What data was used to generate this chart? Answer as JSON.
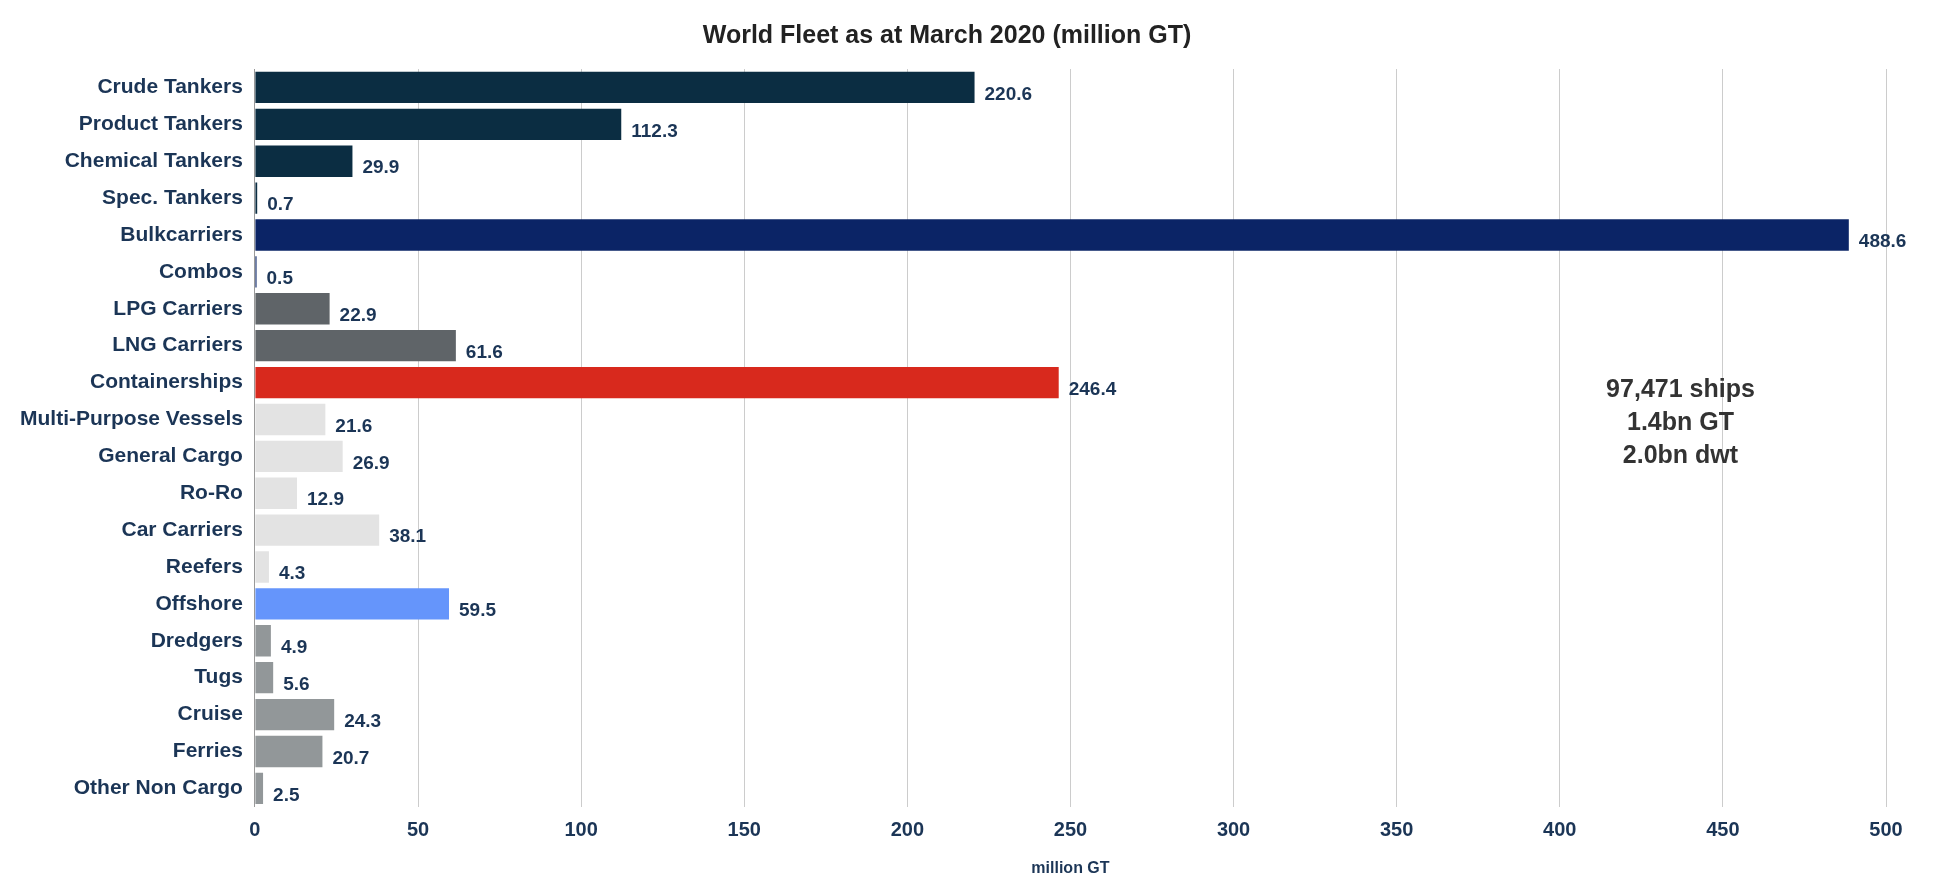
{
  "chart_data": {
    "type": "bar",
    "orientation": "horizontal",
    "title": "World Fleet as at March 2020 (million GT)",
    "xlabel": "million GT",
    "categories": [
      "Crude Tankers",
      "Product Tankers",
      "Chemical Tankers",
      "Spec. Tankers",
      "Bulkcarriers",
      "Combos",
      "LPG Carriers",
      "LNG Carriers",
      "Containerships",
      "Multi-Purpose Vessels",
      "General Cargo",
      "Ro-Ro",
      "Car Carriers",
      "Reefers",
      "Offshore",
      "Dredgers",
      "Tugs",
      "Cruise",
      "Ferries",
      "Other Non Cargo"
    ],
    "values": [
      220.6,
      112.3,
      29.9,
      0.7,
      488.6,
      0.5,
      22.9,
      61.6,
      246.4,
      21.6,
      26.9,
      12.9,
      38.1,
      4.3,
      59.5,
      4.9,
      5.6,
      24.3,
      20.7,
      2.5
    ],
    "colors": [
      "#0b2d42",
      "#0b2d42",
      "#0b2d42",
      "#0b2d42",
      "#0b2466",
      "#0b2466",
      "#5f6468",
      "#5f6468",
      "#d8291d",
      "#e3e3e3",
      "#e3e3e3",
      "#e3e3e3",
      "#e3e3e3",
      "#e3e3e3",
      "#6595fb",
      "#929799",
      "#929799",
      "#929799",
      "#929799",
      "#929799"
    ],
    "xlim": [
      0,
      500
    ],
    "xticks": [
      0,
      50,
      100,
      150,
      200,
      250,
      300,
      350,
      400,
      450,
      500
    ],
    "grid": "x",
    "data_labels": true,
    "legend": false,
    "annotations": [
      "97,471 ships",
      "1.4bn GT",
      "2.0bn dwt"
    ]
  }
}
